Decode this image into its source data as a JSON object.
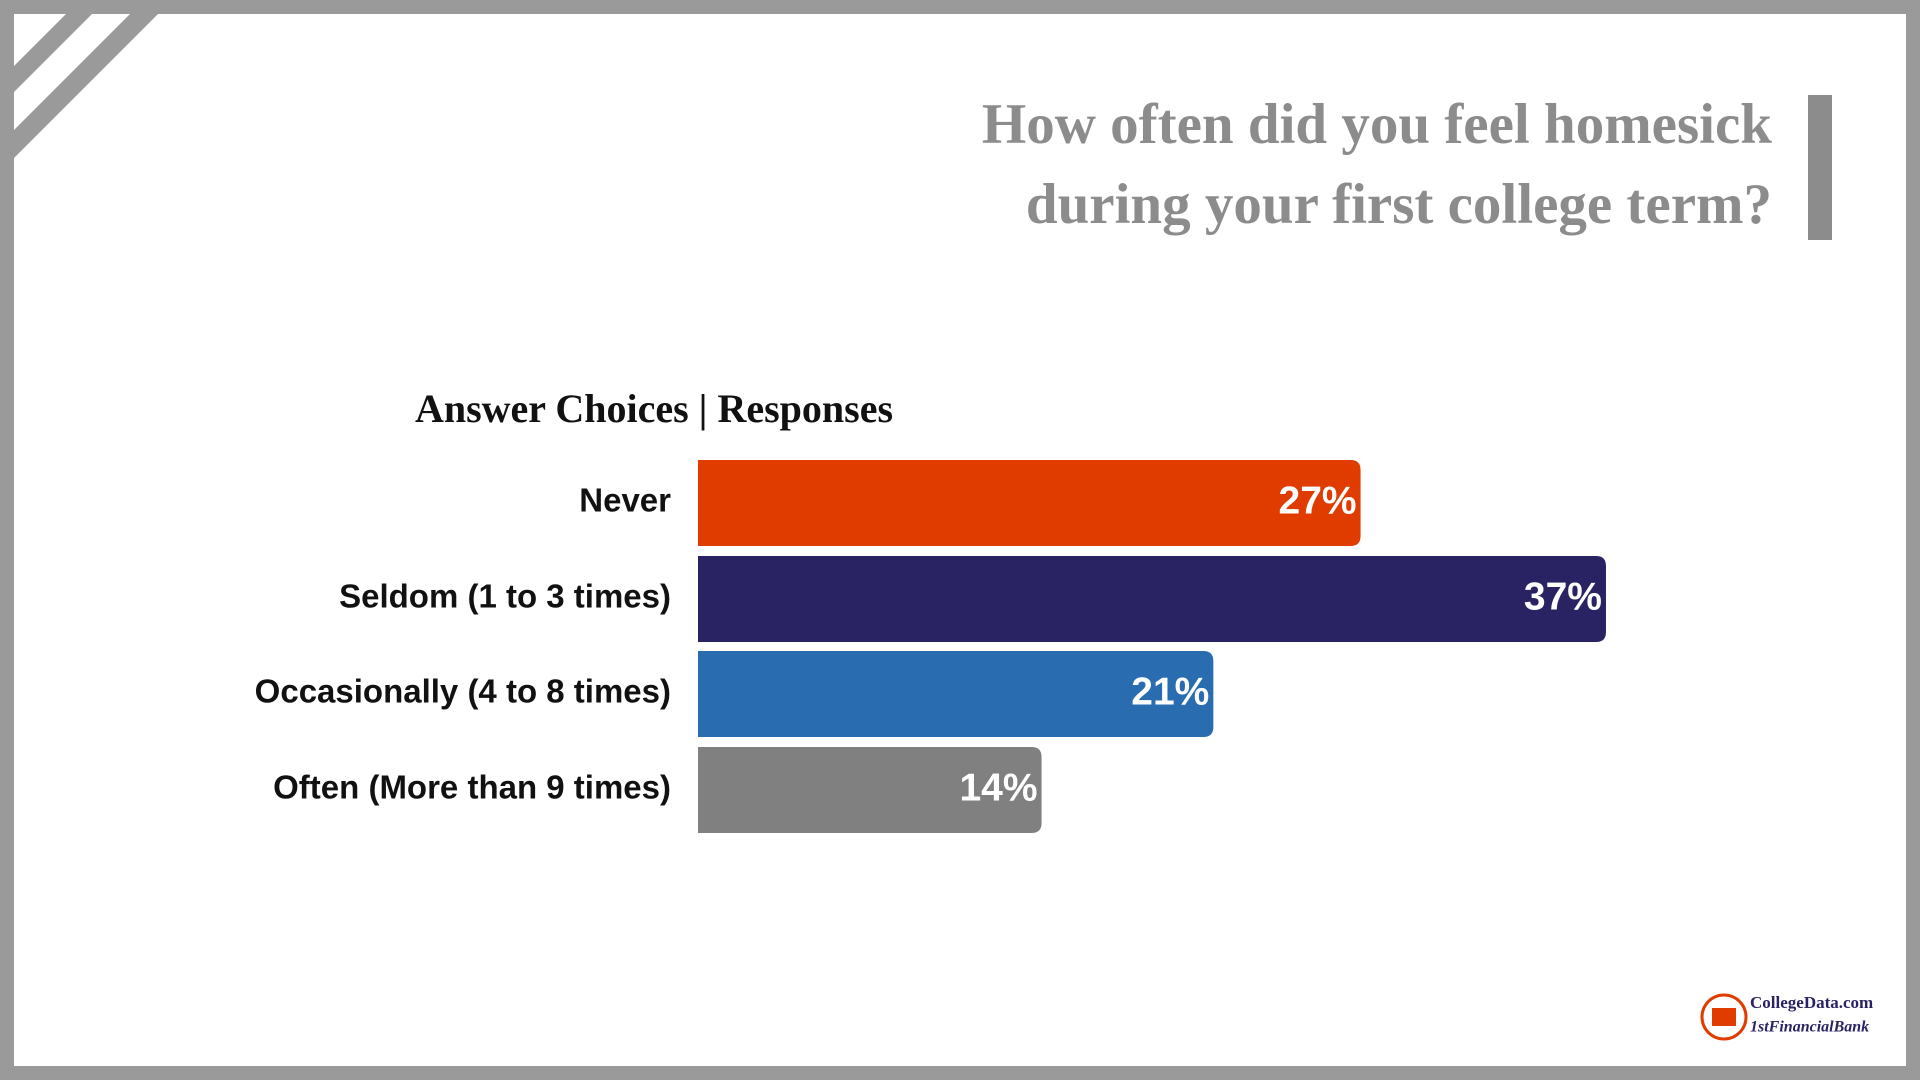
{
  "chart_data": {
    "type": "bar",
    "orientation": "horizontal",
    "title": "How often did you feel homesick during your first college term?",
    "subtitle": "Answer Choices | Responses",
    "categories": [
      "Never",
      "Seldom (1 to 3 times)",
      "Occasionally (4 to 8 times)",
      "Often (More than 9 times)"
    ],
    "values": [
      27,
      37,
      21,
      14
    ],
    "value_labels": [
      "27%",
      "37%",
      "21%",
      "14%"
    ],
    "colors": [
      "#e03c00",
      "#2a2363",
      "#2a6cb0",
      "#808080"
    ],
    "logo": [
      "CollegeData.com",
      "1stFinancialBank"
    ]
  }
}
